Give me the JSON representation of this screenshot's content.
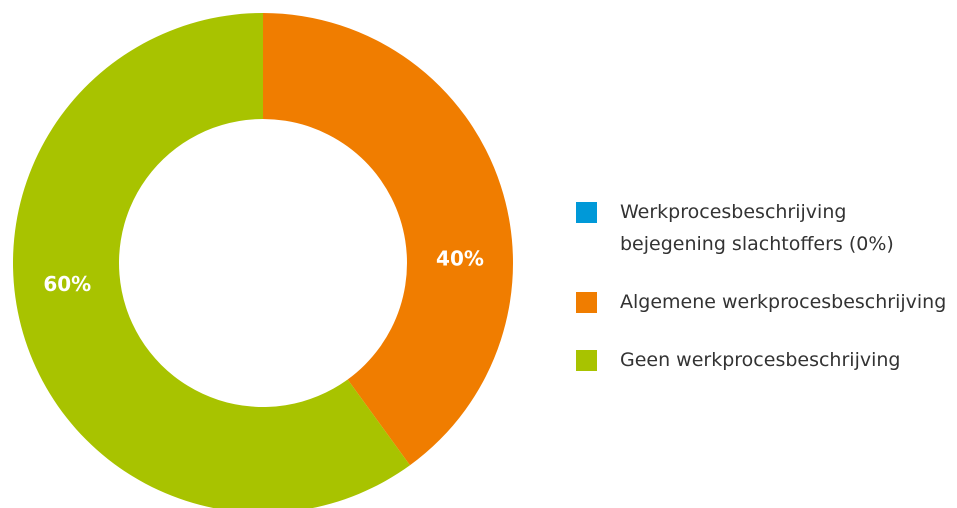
{
  "chart_data": {
    "type": "pie",
    "categories": [
      "Werkprocesbeschrijving bejegening slachtoffers (0%)",
      "Algemene werkprocesbeschrijving",
      "Geen werkprocesbeschrijving"
    ],
    "values": [
      0,
      40,
      60
    ],
    "value_labels": [
      null,
      "40%",
      "60%"
    ],
    "colors": [
      "#0099d8",
      "#f07d00",
      "#a8c300"
    ],
    "legend": "right"
  }
}
